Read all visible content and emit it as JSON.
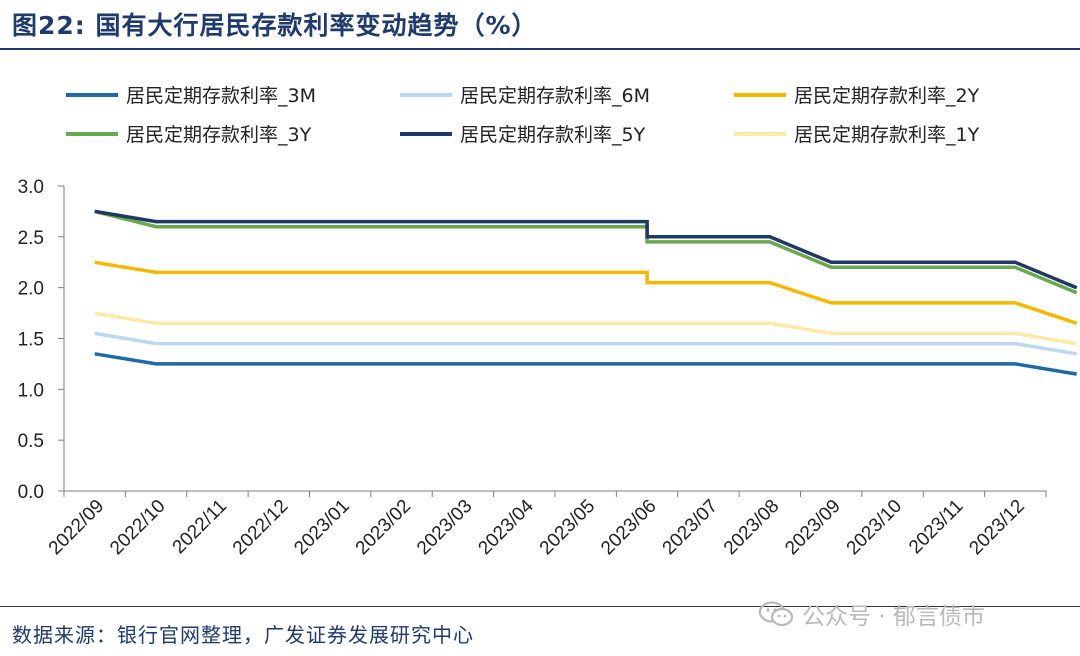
{
  "title": "图22:  国有大行居民存款利率变动趋势（%）",
  "source": "数据来源：银行官网整理，广发证券发展研究中心",
  "watermark": "公众号 · 郁言债市",
  "chart_data": {
    "type": "line",
    "x": [
      "2022/09",
      "2022/10",
      "2022/11",
      "2022/12",
      "2023/01",
      "2023/02",
      "2023/03",
      "2023/04",
      "2023/05",
      "2023/06",
      "2023/07",
      "2023/08",
      "2023/09",
      "2023/10",
      "2023/11",
      "2023/12"
    ],
    "ylim": [
      0,
      3.0
    ],
    "yticks": [
      "0.0",
      "0.5",
      "1.0",
      "1.5",
      "2.0",
      "2.5",
      "3.0"
    ],
    "grid": false,
    "legend_position": "top",
    "series": [
      {
        "name": "居民定期存款利率_3M",
        "color": "#1F6AA5",
        "points": [
          [
            0,
            1.35
          ],
          [
            1,
            1.25
          ],
          [
            9,
            1.25
          ],
          [
            9.5,
            1.25
          ],
          [
            12,
            1.25
          ],
          [
            15,
            1.25
          ],
          [
            16,
            1.15
          ]
        ]
      },
      {
        "name": "居民定期存款利率_6M",
        "color": "#BDD7EE",
        "points": [
          [
            0,
            1.55
          ],
          [
            1,
            1.45
          ],
          [
            9,
            1.45
          ],
          [
            9.5,
            1.45
          ],
          [
            12,
            1.45
          ],
          [
            15,
            1.45
          ],
          [
            16,
            1.35
          ]
        ]
      },
      {
        "name": "居民定期存款利率_2Y",
        "color": "#F5B800",
        "points": [
          [
            0,
            2.25
          ],
          [
            1,
            2.15
          ],
          [
            9,
            2.15
          ],
          [
            9,
            2.05
          ],
          [
            11,
            2.05
          ],
          [
            12,
            1.85
          ],
          [
            15,
            1.85
          ],
          [
            16,
            1.65
          ]
        ]
      },
      {
        "name": "居民定期存款利率_3Y",
        "color": "#6AA84F",
        "points": [
          [
            0,
            2.75
          ],
          [
            1,
            2.6
          ],
          [
            9,
            2.6
          ],
          [
            9,
            2.45
          ],
          [
            11,
            2.45
          ],
          [
            12,
            2.2
          ],
          [
            15,
            2.2
          ],
          [
            16,
            1.95
          ]
        ]
      },
      {
        "name": "居民定期存款利率_5Y",
        "color": "#203864",
        "points": [
          [
            0,
            2.75
          ],
          [
            1,
            2.65
          ],
          [
            9,
            2.65
          ],
          [
            9,
            2.5
          ],
          [
            11,
            2.5
          ],
          [
            12,
            2.25
          ],
          [
            15,
            2.25
          ],
          [
            16,
            2.0
          ]
        ]
      },
      {
        "name": "居民定期存款利率_1Y",
        "color": "#FDE9A6",
        "points": [
          [
            0,
            1.75
          ],
          [
            1,
            1.65
          ],
          [
            9,
            1.65
          ],
          [
            9.5,
            1.65
          ],
          [
            11,
            1.65
          ],
          [
            12,
            1.55
          ],
          [
            15,
            1.55
          ],
          [
            16,
            1.45
          ]
        ]
      }
    ],
    "draw_order": [
      1,
      5,
      0,
      2,
      3,
      4
    ]
  }
}
